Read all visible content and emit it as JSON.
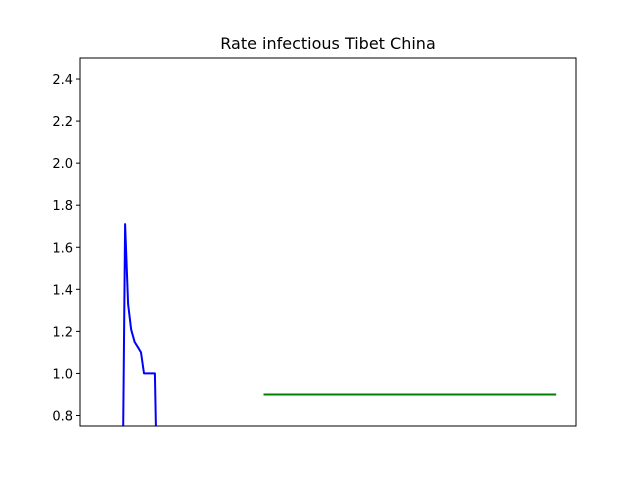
{
  "chart_data": {
    "type": "line",
    "title": "Rate infectious Tibet China",
    "xlabel": "",
    "ylabel": "",
    "ylim": [
      0.75,
      2.5
    ],
    "xlim": [
      0,
      100
    ],
    "x_ticks_visible": false,
    "y_ticks": [
      "0.8",
      "1.0",
      "1.2",
      "1.4",
      "1.6",
      "1.8",
      "2.0",
      "2.2",
      "2.4"
    ],
    "grid": false,
    "series": [
      {
        "color": "#0000ff",
        "points": [
          [
            8.7,
            0.75
          ],
          [
            9.1,
            1.71
          ],
          [
            9.7,
            1.33
          ],
          [
            10.3,
            1.21
          ],
          [
            11.0,
            1.15
          ],
          [
            11.8,
            1.12
          ],
          [
            12.3,
            1.1
          ],
          [
            12.9,
            1.0
          ],
          [
            14.7,
            1.0
          ],
          [
            15.1,
            1.0
          ],
          [
            15.3,
            0.75
          ]
        ]
      },
      {
        "color": "#008000",
        "points": [
          [
            37.0,
            0.9
          ],
          [
            96.0,
            0.9
          ]
        ]
      }
    ]
  }
}
